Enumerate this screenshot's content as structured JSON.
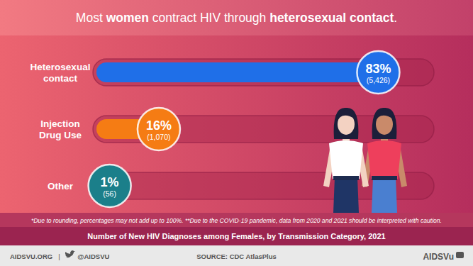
{
  "chart_data": {
    "type": "bar",
    "orientation": "horizontal",
    "title": [
      "Most ",
      "women",
      " contract HIV through ",
      "heterosexual contact",
      "."
    ],
    "categories": [
      "Heterosexual\ncontact",
      "Injection\nDrug Use",
      "Other"
    ],
    "values": [
      83,
      16,
      1
    ],
    "value_labels": [
      "83%",
      "16%",
      "1%"
    ],
    "counts": [
      5426,
      1070,
      56
    ],
    "count_labels": [
      "(5,426)",
      "(1,070)",
      "(56)"
    ],
    "colors": [
      "#1f6fe8",
      "#f57c14",
      "#1b7f8a"
    ],
    "xlim": [
      0,
      100
    ],
    "tick_labels": false,
    "grid": false,
    "data_labels": true,
    "footnote": "*Due to rounding, percentages may not add up to 100%. **Due to the COVID-19 pandemic, data from 2020 and 2021 should be interpreted with caution.",
    "subtitle": "Number of New HIV Diagnoses among Females, by Transmission Category, 2021",
    "footer": {
      "site": "AIDSVU.ORG",
      "separator": "|",
      "handle": "@AIDSVU",
      "source": "SOURCE: CDC AtlasPlus",
      "brand": "AIDSVu"
    }
  }
}
